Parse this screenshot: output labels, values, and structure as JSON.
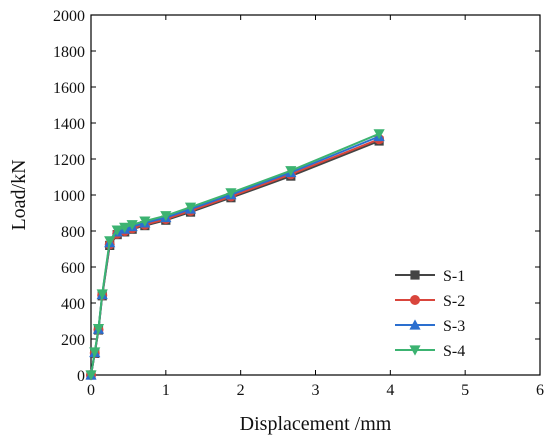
{
  "chart_data": {
    "type": "line",
    "title": "",
    "xlabel": "Displacement /mm",
    "ylabel": "Load/kN",
    "xlim": [
      0,
      6
    ],
    "ylim": [
      0,
      2000
    ],
    "xticks": [
      0,
      1,
      2,
      3,
      4,
      5,
      6
    ],
    "yticks": [
      0,
      200,
      400,
      600,
      800,
      1000,
      1200,
      1400,
      1600,
      1800,
      2000
    ],
    "grid": false,
    "legend_position": "bottom-right",
    "series": [
      {
        "name": "S-1",
        "color": "#444444",
        "marker": "square",
        "x": [
          0,
          0.05,
          0.1,
          0.15,
          0.25,
          0.35,
          0.45,
          0.55,
          0.72,
          1.0,
          1.33,
          1.87,
          2.67,
          3.85
        ],
        "y": [
          0,
          120,
          250,
          440,
          720,
          780,
          795,
          810,
          830,
          860,
          905,
          985,
          1105,
          1300
        ]
      },
      {
        "name": "S-2",
        "color": "#d9453c",
        "marker": "circle",
        "x": [
          0,
          0.05,
          0.1,
          0.15,
          0.25,
          0.35,
          0.45,
          0.55,
          0.72,
          1.0,
          1.33,
          1.87,
          2.67,
          3.85
        ],
        "y": [
          0,
          122,
          252,
          443,
          725,
          785,
          800,
          815,
          835,
          866,
          912,
          992,
          1115,
          1310
        ]
      },
      {
        "name": "S-3",
        "color": "#2b6fcf",
        "marker": "triangle-up",
        "x": [
          0,
          0.05,
          0.1,
          0.15,
          0.25,
          0.35,
          0.45,
          0.55,
          0.72,
          1.0,
          1.33,
          1.87,
          2.67,
          3.85
        ],
        "y": [
          0,
          125,
          255,
          447,
          735,
          795,
          810,
          825,
          845,
          875,
          922,
          1002,
          1125,
          1325
        ]
      },
      {
        "name": "S-4",
        "color": "#3cb371",
        "marker": "triangle-down",
        "x": [
          0,
          0.05,
          0.1,
          0.15,
          0.25,
          0.35,
          0.45,
          0.55,
          0.72,
          1.0,
          1.33,
          1.87,
          2.67,
          3.85
        ],
        "y": [
          0,
          128,
          258,
          450,
          745,
          805,
          820,
          835,
          855,
          885,
          932,
          1012,
          1135,
          1340
        ]
      }
    ]
  }
}
